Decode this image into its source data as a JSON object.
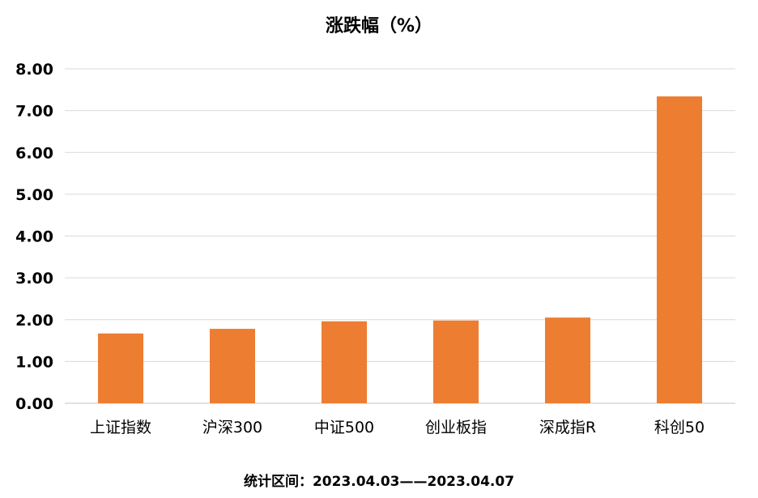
{
  "chart_data": {
    "type": "bar",
    "title": "涨跌幅（%）",
    "categories": [
      "上证指数",
      "沪深300",
      "中证500",
      "创业板指",
      "深成指R",
      "科创50"
    ],
    "values": [
      1.67,
      1.78,
      1.96,
      1.98,
      2.05,
      7.34
    ],
    "ylim": [
      0,
      8
    ],
    "yticks": [
      "0.00",
      "1.00",
      "2.00",
      "3.00",
      "4.00",
      "5.00",
      "6.00",
      "7.00",
      "8.00"
    ],
    "xlabel": "",
    "ylabel": "",
    "grid": true,
    "legend": "none",
    "bar_color": "#ED7D31",
    "grid_color": "#D9D9D9"
  },
  "footnote": "统计区间：2023.04.03——2023.04.07"
}
